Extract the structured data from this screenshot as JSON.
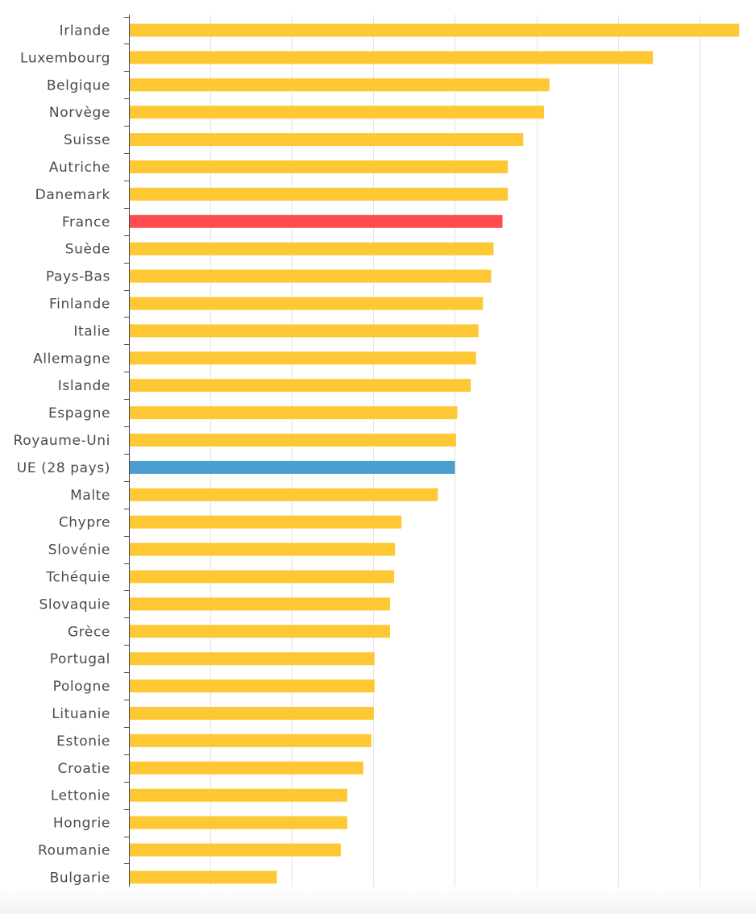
{
  "chart_data": {
    "type": "bar",
    "orientation": "horizontal",
    "title": "",
    "xlabel": "",
    "ylabel": "",
    "xlim": [
      0,
      150
    ],
    "x_gridlines": [
      0,
      20,
      40,
      60,
      80,
      100,
      120,
      140
    ],
    "grid": true,
    "categories": [
      "Irlande",
      "Luxembourg",
      "Belgique",
      "Norvège",
      "Suisse",
      "Autriche",
      "Danemark",
      "France",
      "Suède",
      "Pays-Bas",
      "Finlande",
      "Italie",
      "Allemagne",
      "Islande",
      "Espagne",
      "Royaume-Uni",
      "UE (28 pays)",
      "Malte",
      "Chypre",
      "Slovénie",
      "Tchéquie",
      "Slovaquie",
      "Grèce",
      "Portugal",
      "Pologne",
      "Lituanie",
      "Estonie",
      "Croatie",
      "Lettonie",
      "Hongrie",
      "Roumanie",
      "Bulgarie"
    ],
    "values": [
      149.8,
      128.6,
      103.2,
      101.9,
      96.8,
      93.0,
      93.0,
      91.7,
      89.5,
      88.9,
      86.9,
      85.8,
      85.2,
      83.9,
      80.6,
      80.3,
      80.0,
      75.8,
      66.9,
      65.3,
      65.1,
      64.1,
      64.1,
      60.3,
      60.3,
      60.1,
      59.5,
      57.5,
      53.6,
      53.6,
      52.0,
      36.3
    ],
    "bar_colors": {
      "default": "#fec835",
      "France": "#ff4c4e",
      "UE (28 pays)": "#4c9ed1"
    }
  }
}
